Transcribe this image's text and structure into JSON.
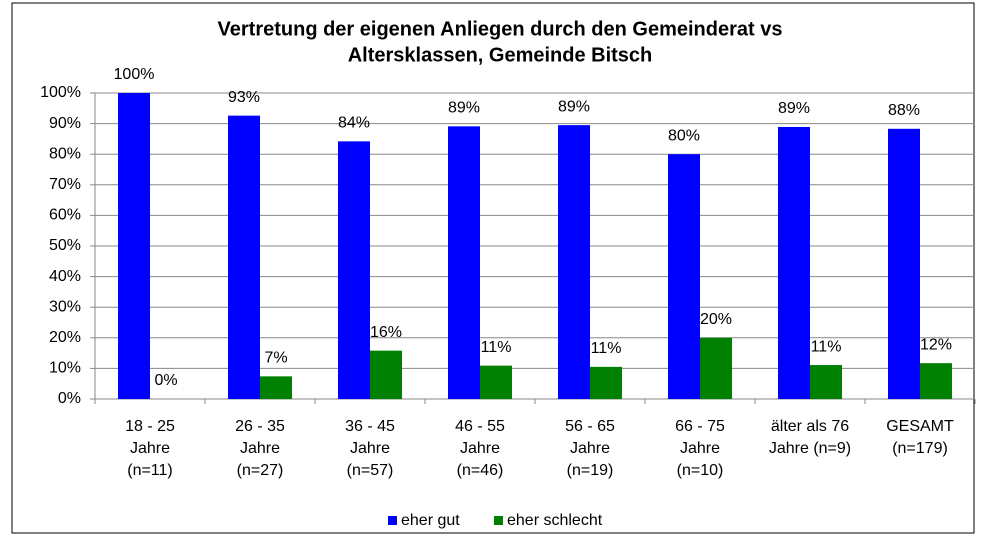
{
  "chart_data": {
    "type": "bar",
    "title": [
      "Vertretung der eigenen Anliegen durch den Gemeinderat vs",
      "Altersklassen, Gemeinde Bitsch"
    ],
    "categories": [
      [
        "18 - 25",
        "Jahre",
        "(n=11)"
      ],
      [
        "26 - 35",
        "Jahre",
        "(n=27)"
      ],
      [
        "36 - 45",
        "Jahre",
        "(n=57)"
      ],
      [
        "46 - 55",
        "Jahre",
        "(n=46)"
      ],
      [
        "56 - 65",
        "Jahre",
        "(n=19)"
      ],
      [
        "66 - 75",
        "Jahre",
        "(n=10)"
      ],
      [
        "älter als 76",
        "Jahre (n=9)"
      ],
      [
        "GESAMT",
        "(n=179)"
      ]
    ],
    "series": [
      {
        "name": "eher gut",
        "color": "#0000ff",
        "values": [
          100,
          92.6,
          84.2,
          89.1,
          89.5,
          80,
          88.9,
          88.3
        ],
        "value_labels": [
          "100%",
          "93%",
          "84%",
          "89%",
          "89%",
          "80%",
          "89%",
          "88%"
        ]
      },
      {
        "name": "eher schlecht",
        "color": "#008000",
        "values": [
          0,
          7.4,
          15.8,
          10.9,
          10.5,
          20,
          11.1,
          11.7
        ],
        "value_labels": [
          "0%",
          "7%",
          "16%",
          "11%",
          "11%",
          "20%",
          "11%",
          "12%"
        ]
      }
    ],
    "ylim": [
      0,
      100
    ],
    "yticks": [
      {
        "value": 0,
        "label": "0%"
      },
      {
        "value": 10,
        "label": "10%"
      },
      {
        "value": 20,
        "label": "20%"
      },
      {
        "value": 30,
        "label": "30%"
      },
      {
        "value": 40,
        "label": "40%"
      },
      {
        "value": 50,
        "label": "50%"
      },
      {
        "value": 60,
        "label": "60%"
      },
      {
        "value": 70,
        "label": "70%"
      },
      {
        "value": 80,
        "label": "80%"
      },
      {
        "value": 90,
        "label": "90%"
      },
      {
        "value": 100,
        "label": "100%"
      }
    ],
    "grid": true,
    "legend": "bottom"
  }
}
